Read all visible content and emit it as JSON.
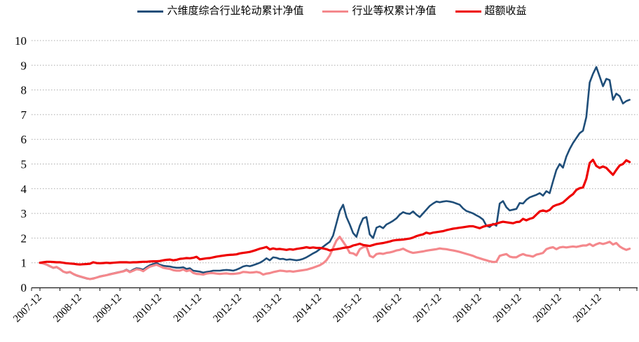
{
  "chart_data": {
    "type": "line",
    "title": "",
    "xlabel": "",
    "ylabel": "",
    "ylim": [
      0,
      10
    ],
    "y_ticks": [
      0,
      1,
      2,
      3,
      4,
      5,
      6,
      7,
      8,
      9,
      10
    ],
    "grid": "horizontal-dotted",
    "legend_position": "top",
    "x_frequency": "monthly",
    "x_monthly_start": "2007-12",
    "x_tick_labels": [
      "2007-12",
      "2008-12",
      "2009-12",
      "2010-12",
      "2011-12",
      "2012-12",
      "2013-12",
      "2014-12",
      "2015-12",
      "2016-12",
      "2017-12",
      "2018-12",
      "2019-12",
      "2020-12",
      "2021-12"
    ],
    "series": [
      {
        "name": "六维度综合行业轮动累计净值",
        "color": "#1F4E79",
        "values": [
          1.0,
          0.97,
          0.92,
          0.85,
          0.79,
          0.82,
          0.74,
          0.64,
          0.59,
          0.62,
          0.54,
          0.48,
          0.44,
          0.4,
          0.36,
          0.34,
          0.37,
          0.4,
          0.45,
          0.48,
          0.5,
          0.54,
          0.57,
          0.6,
          0.63,
          0.66,
          0.72,
          0.64,
          0.72,
          0.78,
          0.76,
          0.72,
          0.82,
          0.9,
          0.95,
          0.99,
          0.92,
          0.88,
          0.86,
          0.85,
          0.82,
          0.8,
          0.8,
          0.82,
          0.75,
          0.78,
          0.68,
          0.66,
          0.64,
          0.6,
          0.63,
          0.65,
          0.68,
          0.68,
          0.68,
          0.7,
          0.71,
          0.7,
          0.68,
          0.72,
          0.78,
          0.85,
          0.88,
          0.86,
          0.9,
          0.95,
          1.0,
          1.08,
          1.18,
          1.1,
          1.22,
          1.2,
          1.15,
          1.16,
          1.12,
          1.14,
          1.12,
          1.1,
          1.12,
          1.16,
          1.22,
          1.3,
          1.38,
          1.45,
          1.55,
          1.65,
          1.75,
          1.85,
          2.1,
          2.6,
          3.1,
          3.35,
          2.85,
          2.55,
          2.2,
          2.05,
          2.5,
          2.8,
          2.85,
          2.15,
          2.0,
          2.42,
          2.48,
          2.4,
          2.55,
          2.62,
          2.7,
          2.8,
          2.95,
          3.05,
          3.0,
          2.98,
          3.08,
          2.95,
          2.85,
          3.0,
          3.15,
          3.3,
          3.4,
          3.48,
          3.45,
          3.48,
          3.5,
          3.48,
          3.45,
          3.4,
          3.35,
          3.2,
          3.1,
          3.05,
          3.0,
          2.92,
          2.85,
          2.75,
          2.5,
          2.45,
          2.58,
          2.5,
          3.4,
          3.5,
          3.25,
          3.12,
          3.15,
          3.18,
          3.42,
          3.4,
          3.55,
          3.65,
          3.7,
          3.75,
          3.82,
          3.72,
          3.9,
          3.82,
          4.3,
          4.75,
          5.0,
          4.85,
          5.3,
          5.6,
          5.85,
          6.05,
          6.25,
          6.35,
          6.9,
          8.3,
          8.65,
          8.93,
          8.55,
          8.15,
          8.45,
          8.4,
          7.6,
          7.85,
          7.75,
          7.45,
          7.55,
          7.6
        ]
      },
      {
        "name": "行业等权累计净值",
        "color": "#F4888C",
        "values": [
          1.0,
          0.97,
          0.93,
          0.86,
          0.8,
          0.83,
          0.75,
          0.64,
          0.6,
          0.63,
          0.55,
          0.49,
          0.45,
          0.41,
          0.37,
          0.34,
          0.36,
          0.4,
          0.44,
          0.47,
          0.5,
          0.53,
          0.56,
          0.59,
          0.62,
          0.65,
          0.7,
          0.62,
          0.68,
          0.74,
          0.72,
          0.66,
          0.76,
          0.84,
          0.88,
          0.92,
          0.86,
          0.8,
          0.77,
          0.75,
          0.7,
          0.68,
          0.68,
          0.73,
          0.66,
          0.7,
          0.59,
          0.55,
          0.54,
          0.52,
          0.56,
          0.58,
          0.58,
          0.56,
          0.55,
          0.56,
          0.57,
          0.55,
          0.55,
          0.56,
          0.58,
          0.63,
          0.62,
          0.6,
          0.61,
          0.63,
          0.6,
          0.52,
          0.56,
          0.58,
          0.62,
          0.65,
          0.68,
          0.67,
          0.65,
          0.66,
          0.64,
          0.66,
          0.68,
          0.7,
          0.72,
          0.76,
          0.8,
          0.85,
          0.9,
          0.98,
          1.1,
          1.3,
          1.6,
          1.9,
          2.05,
          1.85,
          1.65,
          1.4,
          1.38,
          1.3,
          1.55,
          1.63,
          1.66,
          1.28,
          1.22,
          1.35,
          1.38,
          1.36,
          1.4,
          1.42,
          1.45,
          1.5,
          1.52,
          1.57,
          1.5,
          1.44,
          1.4,
          1.42,
          1.44,
          1.46,
          1.49,
          1.51,
          1.53,
          1.55,
          1.58,
          1.56,
          1.55,
          1.52,
          1.5,
          1.47,
          1.44,
          1.4,
          1.36,
          1.32,
          1.28,
          1.22,
          1.18,
          1.14,
          1.1,
          1.06,
          1.03,
          1.04,
          1.28,
          1.32,
          1.35,
          1.25,
          1.22,
          1.22,
          1.3,
          1.35,
          1.3,
          1.28,
          1.25,
          1.33,
          1.36,
          1.4,
          1.55,
          1.6,
          1.63,
          1.55,
          1.62,
          1.64,
          1.62,
          1.64,
          1.66,
          1.64,
          1.67,
          1.7,
          1.7,
          1.76,
          1.68,
          1.75,
          1.8,
          1.76,
          1.8,
          1.85,
          1.74,
          1.8,
          1.66,
          1.58,
          1.52,
          1.57
        ]
      },
      {
        "name": "超额收益",
        "color": "#EE0000",
        "values": [
          1.0,
          1.02,
          1.04,
          1.04,
          1.03,
          1.02,
          1.02,
          1.0,
          0.98,
          0.97,
          0.96,
          0.94,
          0.93,
          0.94,
          0.95,
          0.96,
          1.02,
          0.99,
          0.98,
          0.99,
          1.0,
          0.99,
          1.0,
          1.01,
          1.02,
          1.02,
          1.02,
          1.01,
          1.02,
          1.02,
          1.03,
          1.04,
          1.04,
          1.05,
          1.06,
          1.06,
          1.07,
          1.1,
          1.12,
          1.13,
          1.1,
          1.12,
          1.16,
          1.17,
          1.19,
          1.18,
          1.2,
          1.24,
          1.14,
          1.16,
          1.18,
          1.19,
          1.22,
          1.25,
          1.27,
          1.29,
          1.31,
          1.32,
          1.33,
          1.34,
          1.38,
          1.4,
          1.42,
          1.44,
          1.48,
          1.52,
          1.57,
          1.6,
          1.64,
          1.54,
          1.58,
          1.55,
          1.56,
          1.54,
          1.52,
          1.55,
          1.53,
          1.56,
          1.58,
          1.6,
          1.63,
          1.6,
          1.62,
          1.6,
          1.6,
          1.58,
          1.55,
          1.5,
          1.53,
          1.55,
          1.57,
          1.6,
          1.62,
          1.64,
          1.7,
          1.73,
          1.77,
          1.72,
          1.7,
          1.68,
          1.72,
          1.76,
          1.78,
          1.8,
          1.83,
          1.86,
          1.9,
          1.92,
          1.93,
          1.94,
          1.96,
          1.98,
          2.02,
          2.08,
          2.12,
          2.15,
          2.22,
          2.18,
          2.22,
          2.24,
          2.26,
          2.28,
          2.32,
          2.35,
          2.38,
          2.4,
          2.42,
          2.44,
          2.46,
          2.48,
          2.48,
          2.44,
          2.4,
          2.46,
          2.5,
          2.52,
          2.55,
          2.58,
          2.63,
          2.66,
          2.64,
          2.62,
          2.6,
          2.65,
          2.66,
          2.78,
          2.72,
          2.78,
          2.82,
          2.95,
          3.08,
          3.12,
          3.08,
          3.14,
          3.28,
          3.34,
          3.38,
          3.44,
          3.56,
          3.68,
          3.78,
          3.95,
          4.02,
          4.05,
          4.4,
          5.04,
          5.17,
          4.92,
          4.84,
          4.9,
          4.84,
          4.7,
          4.56,
          4.76,
          4.94,
          5.0,
          5.15,
          5.08
        ]
      }
    ],
    "colors": {
      "gridline": "#ABABAB",
      "axis": "#1A1A1A",
      "background": "#FFFFFF"
    }
  }
}
